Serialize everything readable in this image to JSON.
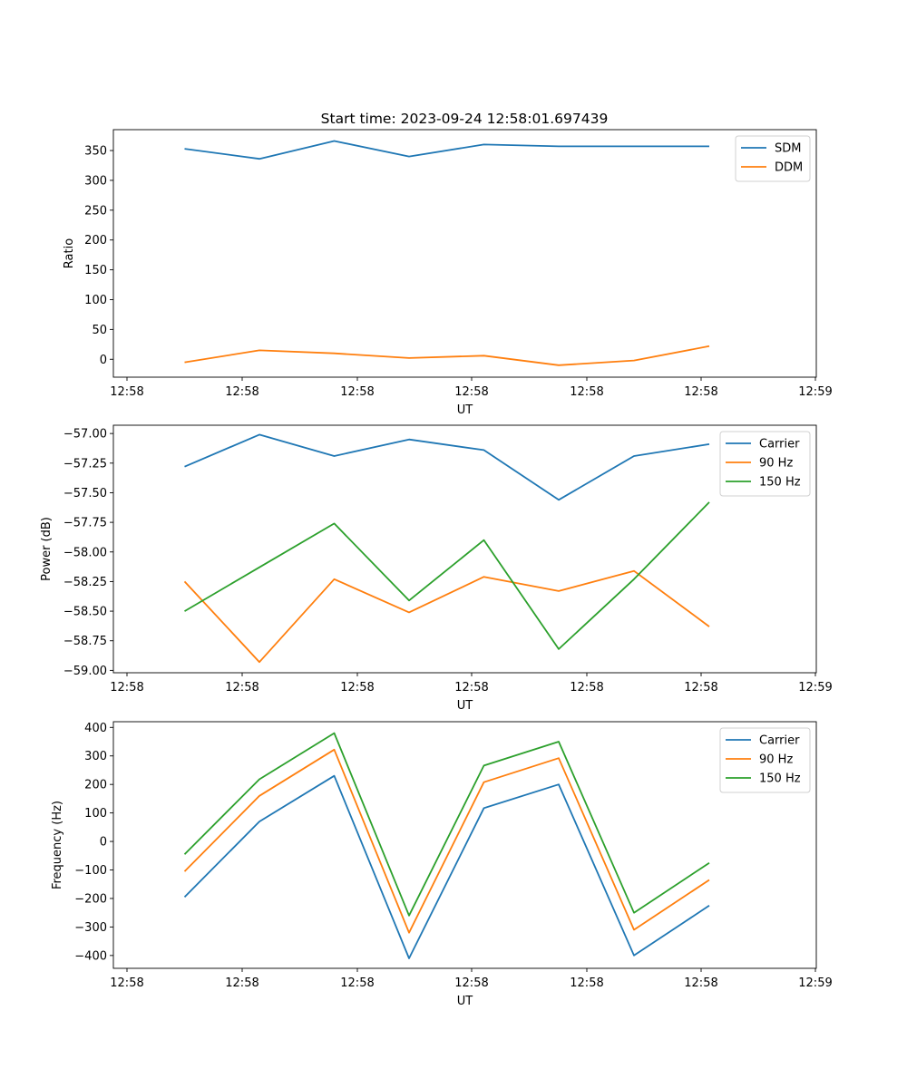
{
  "figure": {
    "title": "Start time: 2023-09-24 12:58:01.697439"
  },
  "chart_data": [
    {
      "type": "line",
      "title": "Start time: 2023-09-24 12:58:01.697439",
      "xlabel": "UT",
      "ylabel": "Ratio",
      "x": [
        1,
        2,
        3,
        4,
        5,
        6,
        7,
        8
      ],
      "x_tick_labels": [
        "12:58",
        "12:58",
        "12:58",
        "12:58",
        "12:58",
        "12:58",
        "12:59"
      ],
      "y_ticks": [
        0,
        50,
        100,
        150,
        200,
        250,
        300,
        350
      ],
      "ylim": [
        -30,
        385
      ],
      "legend": "top-right",
      "series": [
        {
          "name": "SDM",
          "color": "#1f77b4",
          "values": [
            353,
            336,
            366,
            340,
            360,
            357,
            357,
            357
          ]
        },
        {
          "name": "DDM",
          "color": "#ff7f0e",
          "values": [
            -5,
            15,
            10,
            2,
            6,
            -10,
            -2,
            22
          ]
        }
      ]
    },
    {
      "type": "line",
      "title": "",
      "xlabel": "UT",
      "ylabel": "Power (dB)",
      "x": [
        1,
        2,
        3,
        4,
        5,
        6,
        7,
        8
      ],
      "x_tick_labels": [
        "12:58",
        "12:58",
        "12:58",
        "12:58",
        "12:58",
        "12:58",
        "12:59"
      ],
      "y_ticks": [
        -57.0,
        -57.25,
        -57.5,
        -57.75,
        -58.0,
        -58.25,
        -58.5,
        -58.75,
        -59.0
      ],
      "y_tick_labels": [
        "−57.00",
        "−57.25",
        "−57.50",
        "−57.75",
        "−58.00",
        "−58.25",
        "−58.50",
        "−58.75",
        "−59.00"
      ],
      "ylim": [
        -59.02,
        -56.93
      ],
      "legend": "top-right",
      "series": [
        {
          "name": "Carrier",
          "color": "#1f77b4",
          "values": [
            -57.28,
            -57.01,
            -57.19,
            -57.05,
            -57.14,
            -57.56,
            -57.19,
            -57.09
          ]
        },
        {
          "name": "90 Hz",
          "color": "#ff7f0e",
          "values": [
            -58.25,
            -58.93,
            -58.23,
            -58.51,
            -58.21,
            -58.33,
            -58.16,
            -58.63
          ]
        },
        {
          "name": "150 Hz",
          "color": "#2ca02c",
          "values": [
            -58.5,
            -58.13,
            -57.76,
            -58.41,
            -57.9,
            -58.82,
            -58.23,
            -57.58
          ]
        }
      ]
    },
    {
      "type": "line",
      "title": "",
      "xlabel": "UT",
      "ylabel": "Frequency (Hz)",
      "x": [
        1,
        2,
        3,
        4,
        5,
        6,
        7,
        8
      ],
      "x_tick_labels": [
        "12:58",
        "12:58",
        "12:58",
        "12:58",
        "12:58",
        "12:58",
        "12:59"
      ],
      "y_ticks": [
        -400,
        -300,
        -200,
        -100,
        0,
        100,
        200,
        300,
        400
      ],
      "y_tick_labels": [
        "−400",
        "−300",
        "−200",
        "−100",
        "0",
        "100",
        "200",
        "300",
        "400"
      ],
      "ylim": [
        -445,
        420
      ],
      "legend": "top-right",
      "series": [
        {
          "name": "Carrier",
          "color": "#1f77b4",
          "values": [
            -195,
            70,
            230,
            -410,
            117,
            200,
            -400,
            -225
          ]
        },
        {
          "name": "90 Hz",
          "color": "#ff7f0e",
          "values": [
            -105,
            160,
            322,
            -320,
            208,
            292,
            -310,
            -135
          ]
        },
        {
          "name": "150 Hz",
          "color": "#2ca02c",
          "values": [
            -45,
            218,
            380,
            -260,
            266,
            350,
            -250,
            -75
          ]
        }
      ]
    }
  ]
}
